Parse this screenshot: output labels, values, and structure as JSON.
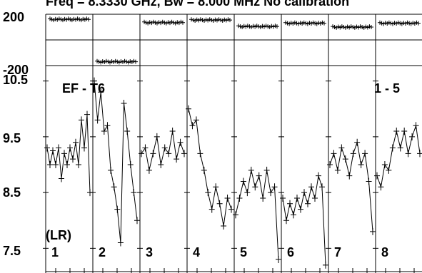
{
  "header": {
    "title": "Freq = 8.3330 GHz, Bw = 8.000 MHz  No calibration"
  },
  "phase_panel": {
    "tick_labels": [
      "200",
      "-200"
    ],
    "ylim": [
      -200,
      200
    ]
  },
  "amp_panel": {
    "title": "EF - T6",
    "range_label": "1 - 5",
    "pol_label": "(LR)",
    "tick_labels": [
      "10.5",
      "9.5",
      "8.5",
      "7.5"
    ],
    "ylim": [
      7.3,
      10.7
    ]
  },
  "chart_data": [
    {
      "type": "scatter",
      "panel": "phase",
      "ylim": [
        -200,
        200
      ],
      "yticks": [
        200,
        -200
      ],
      "grid": true,
      "series": [
        {
          "segment": "1",
          "values": [
            155,
            165
          ]
        },
        {
          "segment": "2",
          "values": [
            -175,
            -165
          ]
        },
        {
          "segment": "3",
          "values": [
            130,
            140
          ]
        },
        {
          "segment": "4",
          "values": [
            150,
            160
          ]
        },
        {
          "segment": "5",
          "values": [
            100,
            110
          ]
        },
        {
          "segment": "6",
          "values": [
            125,
            135
          ]
        },
        {
          "segment": "7",
          "values": [
            95,
            105
          ]
        },
        {
          "segment": "8",
          "values": [
            125,
            135
          ]
        }
      ]
    },
    {
      "type": "line",
      "panel": "amplitude",
      "title": "EF - T6",
      "ylim": [
        7.3,
        10.7
      ],
      "yticks": [
        10.5,
        9.5,
        8.5,
        7.5
      ],
      "grid": true,
      "segments": [
        "1",
        "2",
        "3",
        "4",
        "5",
        "6",
        "7",
        "8"
      ],
      "series": [
        {
          "segment": "1",
          "values": [
            9.3,
            9.0,
            9.25,
            9.0,
            9.3,
            8.75,
            9.2,
            9.0,
            9.3,
            9.1,
            9.4,
            9.0,
            9.8,
            9.3,
            9.9,
            8.5
          ]
        },
        {
          "segment": "2",
          "values": [
            10.5,
            9.8,
            10.3,
            9.6,
            9.7,
            8.9,
            8.6,
            8.2,
            7.6,
            10.1,
            9.6,
            9.0,
            8.5,
            8.0
          ]
        },
        {
          "segment": "3",
          "values": [
            9.2,
            9.3,
            8.9,
            9.2,
            9.5,
            9.0,
            9.3,
            9.2,
            9.6,
            9.1,
            9.4,
            9.2
          ]
        },
        {
          "segment": "4",
          "values": [
            10.0,
            9.7,
            9.8,
            9.2,
            8.9,
            8.5,
            8.2,
            8.6,
            8.3,
            7.9,
            8.4,
            8.2
          ]
        },
        {
          "segment": "5",
          "values": [
            8.1,
            8.4,
            8.7,
            8.5,
            8.9,
            8.6,
            8.8,
            8.4,
            8.9,
            8.5,
            8.6,
            7.3
          ]
        },
        {
          "segment": "6",
          "values": [
            8.4,
            8.0,
            8.3,
            8.1,
            8.4,
            8.2,
            8.5,
            8.3,
            8.6,
            8.4,
            8.8,
            8.6,
            7.2
          ]
        },
        {
          "segment": "7",
          "values": [
            9.0,
            9.2,
            8.9,
            9.3,
            9.1,
            8.8,
            9.2,
            9.4,
            9.0,
            9.2,
            8.7,
            7.8
          ]
        },
        {
          "segment": "8",
          "values": [
            8.8,
            8.6,
            9.0,
            8.9,
            9.3,
            9.6,
            9.3,
            9.6,
            9.2,
            9.5,
            9.7,
            9.2
          ]
        }
      ]
    }
  ]
}
